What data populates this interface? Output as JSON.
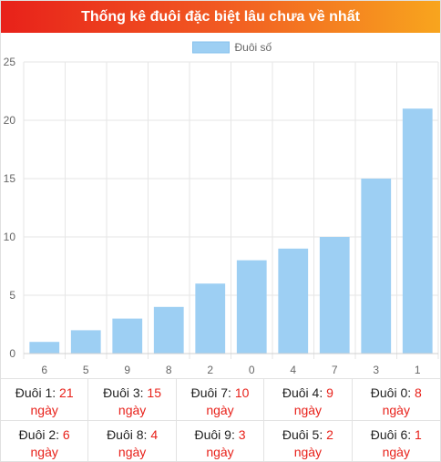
{
  "header": {
    "title": "Thống kê đuôi đặc biệt lâu chưa về nhất"
  },
  "colors": {
    "bar": "#9dcff3",
    "bar_border": "#86c1ec",
    "grid": "#e6e6e6",
    "accent": "#e8211a"
  },
  "chart_data": {
    "type": "bar",
    "categories": [
      "6",
      "5",
      "9",
      "8",
      "2",
      "0",
      "4",
      "7",
      "3",
      "1"
    ],
    "series": [
      {
        "name": "Đuôi số",
        "values": [
          1,
          2,
          3,
          4,
          6,
          8,
          9,
          10,
          15,
          21
        ]
      }
    ],
    "ylim": [
      0,
      25
    ],
    "yticks": [
      0,
      5,
      10,
      15,
      20,
      25
    ],
    "grid": true,
    "legend": "top-center"
  },
  "stats": [
    {
      "label": "Đuôi 1:",
      "value": "21",
      "unit": "ngày"
    },
    {
      "label": "Đuôi 3:",
      "value": "15",
      "unit": "ngày"
    },
    {
      "label": "Đuôi 7:",
      "value": "10",
      "unit": "ngày"
    },
    {
      "label": "Đuôi 4:",
      "value": "9",
      "unit": "ngày"
    },
    {
      "label": "Đuôi 0:",
      "value": "8",
      "unit": "ngày"
    },
    {
      "label": "Đuôi 2:",
      "value": "6",
      "unit": "ngày"
    },
    {
      "label": "Đuôi 8:",
      "value": "4",
      "unit": "ngày"
    },
    {
      "label": "Đuôi 9:",
      "value": "3",
      "unit": "ngày"
    },
    {
      "label": "Đuôi 5:",
      "value": "2",
      "unit": "ngày"
    },
    {
      "label": "Đuôi 6:",
      "value": "1",
      "unit": "ngày"
    }
  ]
}
